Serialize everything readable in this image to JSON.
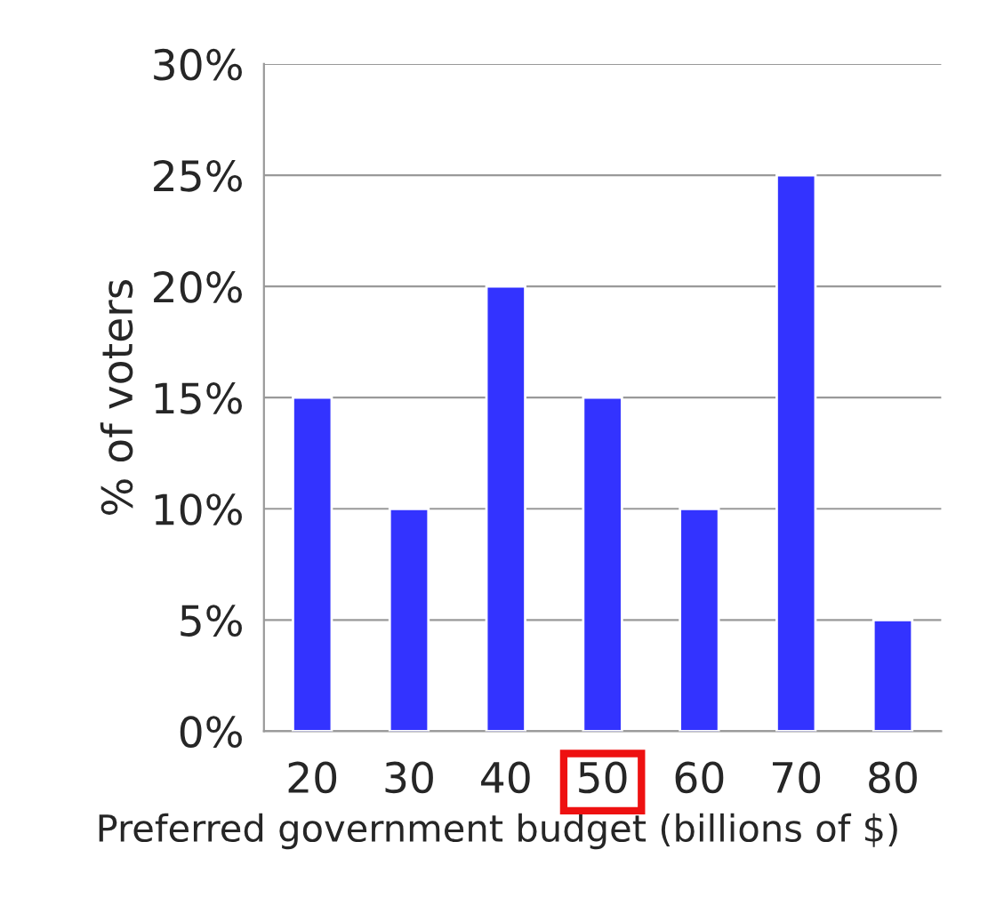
{
  "chart_data": {
    "type": "bar",
    "xlabel": "Preferred government budget (billions of $)",
    "ylabel": "% of voters",
    "categories": [
      "20",
      "30",
      "40",
      "50",
      "60",
      "70",
      "80"
    ],
    "values": [
      15,
      10,
      20,
      15,
      10,
      25,
      5
    ],
    "color": "#3333ff",
    "ylim": [
      0,
      30
    ],
    "yticks": [
      {
        "value": 0,
        "label": "0%"
      },
      {
        "value": 5,
        "label": "5%"
      },
      {
        "value": 10,
        "label": "10%"
      },
      {
        "value": 15,
        "label": "15%"
      },
      {
        "value": 20,
        "label": "20%"
      },
      {
        "value": 25,
        "label": "25%"
      },
      {
        "value": 30,
        "label": "30%"
      }
    ],
    "grid": "y",
    "legend": false
  }
}
